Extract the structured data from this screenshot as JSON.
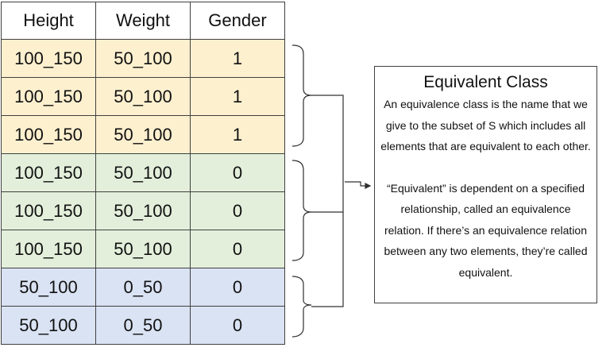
{
  "table": {
    "headers": [
      "Height",
      "Weight",
      "Gender"
    ],
    "rows": [
      [
        "100_150",
        "50_100",
        "1"
      ],
      [
        "100_150",
        "50_100",
        "1"
      ],
      [
        "100_150",
        "50_100",
        "1"
      ],
      [
        "100_150",
        "50_100",
        "0"
      ],
      [
        "100_150",
        "50_100",
        "0"
      ],
      [
        "100_150",
        "50_100",
        "0"
      ],
      [
        "50_100",
        "0_50",
        "0"
      ],
      [
        "50_100",
        "0_50",
        "0"
      ]
    ],
    "row_groups": [
      "yellow",
      "yellow",
      "yellow",
      "green",
      "green",
      "green",
      "blue",
      "blue"
    ]
  },
  "colors": {
    "yellow": "#fdf0cf",
    "green": "#e3efdb",
    "blue": "#dae3f3",
    "border": "#404040"
  },
  "info": {
    "title": "Equivalent Class",
    "paragraph1": "An equivalence class is the name that we give to the subset of S which includes all elements that are equivalent to each other.",
    "paragraph2": "“Equivalent” is dependent on a specified relationship, called an equivalence relation. If there’s an equivalence relation between any two elements, they’re called equivalent."
  }
}
